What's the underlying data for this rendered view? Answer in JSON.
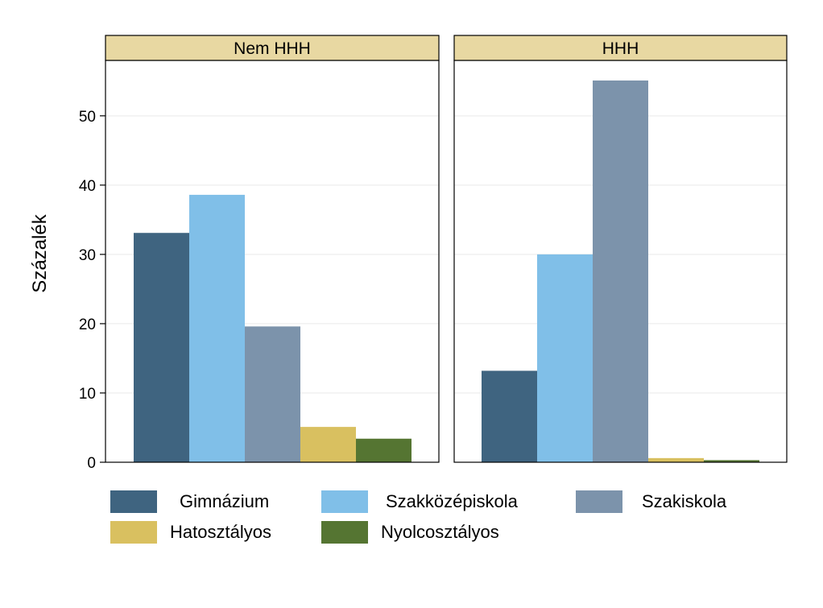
{
  "chart_data": {
    "type": "bar",
    "ylabel": "Százalék",
    "xlabel": "",
    "ylim": [
      0,
      58
    ],
    "yticks": [
      0,
      10,
      20,
      30,
      40,
      50
    ],
    "grid": true,
    "legend_position": "bottom",
    "panels": [
      "Nem HHH",
      "HHH"
    ],
    "series": [
      {
        "name": "Gimnázium",
        "color": "#3f6480",
        "values": [
          33.1,
          13.2
        ]
      },
      {
        "name": "Szakközépiskola",
        "color": "#80bfe8",
        "values": [
          38.6,
          30.0
        ]
      },
      {
        "name": "Szakiskola",
        "color": "#7c93ab",
        "values": [
          19.6,
          55.1
        ]
      },
      {
        "name": "Hatosztályos",
        "color": "#d9c060",
        "values": [
          5.1,
          0.6
        ]
      },
      {
        "name": "Nyolcosztályos",
        "color": "#557532",
        "values": [
          3.4,
          0.3
        ]
      }
    ]
  },
  "colors": {
    "strip_fill": "#e8d8a2",
    "grid": "#e9e9e9"
  }
}
